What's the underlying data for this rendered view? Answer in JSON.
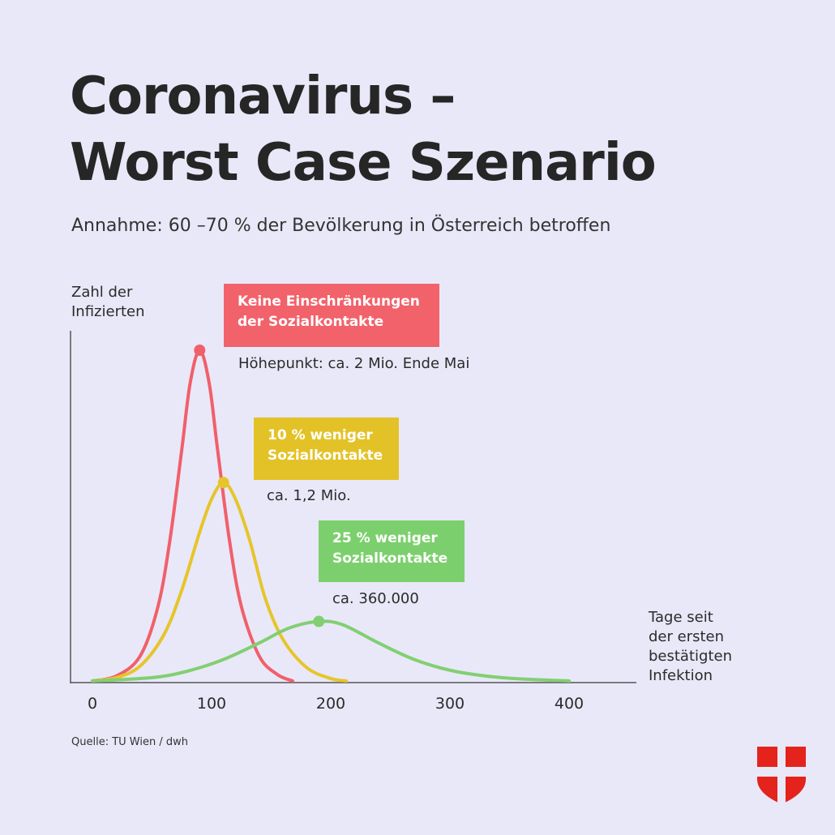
{
  "header": {
    "title_line1": "Coronavirus –",
    "title_line2": "Worst Case Szenario",
    "subtitle": "Annahme: 60 –70 % der Bevölkerung in Österreich betroffen"
  },
  "axes": {
    "ylabel_line1": "Zahl der",
    "ylabel_line2": "Infizierten",
    "xlabel_line1": "Tage seit",
    "xlabel_line2": "der ersten",
    "xlabel_line3": "bestätigten",
    "xlabel_line4": "Infektion"
  },
  "annotations": {
    "red": {
      "line1": "Keine Einschränkungen",
      "line2": "der Sozialkontakte",
      "note": "Höhepunkt: ca. 2 Mio. Ende Mai"
    },
    "yellow": {
      "line1": "10 % weniger",
      "line2": "Sozialkontakte",
      "note": "ca. 1,2 Mio."
    },
    "green": {
      "line1": "25 % weniger",
      "line2": "Sozialkontakte",
      "note": "ca. 360.000"
    }
  },
  "footer": {
    "source": "Quelle: TU Wien / dwh"
  },
  "logo": {
    "icon": "vienna-coat-of-arms-icon",
    "color": "#e4231c"
  },
  "chart_data": {
    "type": "line",
    "x_ticks": [
      "0",
      "100",
      "200",
      "300",
      "400"
    ],
    "xlim": [
      0,
      450
    ],
    "ylim": [
      0,
      2000000
    ],
    "grid": false,
    "series": [
      {
        "key": "red",
        "color": "#f0606a",
        "peak": {
          "x": 90,
          "y": 2000000
        },
        "points": [
          [
            0,
            0
          ],
          [
            20,
            30000
          ],
          [
            40,
            150000
          ],
          [
            55,
            450000
          ],
          [
            65,
            850000
          ],
          [
            75,
            1400000
          ],
          [
            82,
            1800000
          ],
          [
            90,
            2000000
          ],
          [
            98,
            1800000
          ],
          [
            105,
            1400000
          ],
          [
            115,
            850000
          ],
          [
            125,
            450000
          ],
          [
            140,
            150000
          ],
          [
            155,
            40000
          ],
          [
            168,
            0
          ]
        ]
      },
      {
        "key": "yellow",
        "color": "#e6c52c",
        "peak": {
          "x": 110,
          "y": 1200000
        },
        "points": [
          [
            0,
            0
          ],
          [
            20,
            20000
          ],
          [
            40,
            90000
          ],
          [
            60,
            280000
          ],
          [
            75,
            550000
          ],
          [
            90,
            900000
          ],
          [
            100,
            1100000
          ],
          [
            110,
            1200000
          ],
          [
            120,
            1100000
          ],
          [
            132,
            850000
          ],
          [
            145,
            500000
          ],
          [
            160,
            250000
          ],
          [
            180,
            80000
          ],
          [
            200,
            15000
          ],
          [
            213,
            0
          ]
        ]
      },
      {
        "key": "green",
        "color": "#82cf72",
        "peak": {
          "x": 190,
          "y": 360000
        },
        "points": [
          [
            0,
            0
          ],
          [
            50,
            20000
          ],
          [
            80,
            60000
          ],
          [
            110,
            130000
          ],
          [
            140,
            230000
          ],
          [
            165,
            320000
          ],
          [
            190,
            360000
          ],
          [
            210,
            340000
          ],
          [
            240,
            230000
          ],
          [
            270,
            130000
          ],
          [
            300,
            65000
          ],
          [
            330,
            30000
          ],
          [
            360,
            12000
          ],
          [
            400,
            0
          ]
        ]
      }
    ]
  }
}
